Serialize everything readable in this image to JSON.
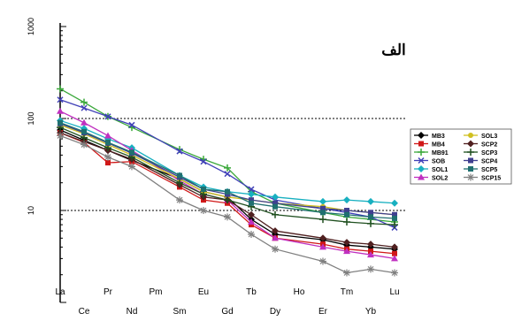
{
  "chart_data": {
    "type": "line",
    "title": "الف",
    "xlabel": "",
    "ylabel": "",
    "y_scale": "log",
    "ylim": [
      1,
      1000
    ],
    "y_ticks": [
      "1000",
      "100",
      "10"
    ],
    "grid": "dotted lines at 10 and 100",
    "legend_placement": "right",
    "categories": [
      "La",
      "Ce",
      "Pr",
      "Nd",
      "Pm",
      "Sm",
      "Eu",
      "Gd",
      "Tb",
      "Dy",
      "Ho",
      "Er",
      "Tm",
      "Yb",
      "Lu"
    ],
    "x_ticks_top": [
      "La",
      "Pr",
      "Pm",
      "Eu",
      "Tb",
      "Ho",
      "Tm",
      "Lu"
    ],
    "x_ticks_bottom": [
      "Ce",
      "Nd",
      "Sm",
      "Gd",
      "Dy",
      "Er",
      "Yb"
    ],
    "series": [
      {
        "name": "MB3",
        "color": "#000000",
        "marker": "diamond",
        "values": [
          75,
          58,
          45,
          35,
          null,
          22,
          16,
          14,
          8,
          5.5,
          null,
          4.8,
          4.2,
          4.0,
          3.8
        ]
      },
      {
        "name": "MB4",
        "color": "#d01818",
        "marker": "square",
        "values": [
          70,
          55,
          33,
          34,
          null,
          18,
          13,
          12,
          7,
          5.0,
          null,
          4.3,
          3.8,
          3.6,
          3.4
        ]
      },
      {
        "name": "MB91",
        "color": "#3aa83a",
        "marker": "plus",
        "values": [
          210,
          150,
          105,
          80,
          null,
          46,
          36,
          29,
          16,
          12,
          null,
          9.5,
          8.5,
          8.0,
          7.5
        ]
      },
      {
        "name": "SOB",
        "color": "#4040b8",
        "marker": "x",
        "values": [
          160,
          130,
          105,
          85,
          null,
          44,
          34,
          25,
          17,
          13,
          null,
          10.5,
          9.5,
          8.5,
          6.5
        ]
      },
      {
        "name": "SOL1",
        "color": "#18b0c0",
        "marker": "diamond",
        "values": [
          95,
          78,
          60,
          48,
          null,
          24,
          18,
          16,
          15,
          14,
          null,
          12.5,
          13,
          12.5,
          12
        ]
      },
      {
        "name": "SOL2",
        "color": "#c030c0",
        "marker": "triangle",
        "values": [
          120,
          90,
          65,
          45,
          null,
          21,
          15,
          13,
          7.5,
          5.0,
          null,
          4.0,
          3.6,
          3.3,
          3.0
        ]
      },
      {
        "name": "SOL3",
        "color": "#d0c020",
        "marker": "circle",
        "values": [
          85,
          68,
          52,
          40,
          null,
          22,
          16,
          14,
          13,
          12,
          null,
          11,
          10,
          9.5,
          9.0
        ]
      },
      {
        "name": "SCP2",
        "color": "#502020",
        "marker": "diamond",
        "values": [
          70,
          56,
          45,
          36,
          null,
          19,
          14,
          13,
          9,
          6.0,
          null,
          5.0,
          4.5,
          4.3,
          4.0
        ]
      },
      {
        "name": "SCP3",
        "color": "#205020",
        "marker": "plus",
        "values": [
          80,
          62,
          48,
          38,
          null,
          20,
          15,
          13,
          11,
          9.0,
          null,
          8.0,
          7.5,
          7.2,
          7.0
        ]
      },
      {
        "name": "SCP4",
        "color": "#404090",
        "marker": "square",
        "values": [
          88,
          70,
          54,
          42,
          null,
          23,
          17,
          15,
          13,
          12,
          null,
          10.5,
          10,
          9.5,
          9.0
        ]
      },
      {
        "name": "SCP5",
        "color": "#207070",
        "marker": "square",
        "values": [
          90,
          72,
          55,
          43,
          null,
          24,
          17,
          16,
          12,
          11,
          null,
          9.5,
          9.0,
          8.5,
          8.2
        ]
      },
      {
        "name": "SCP15",
        "color": "#808080",
        "marker": "star",
        "values": [
          65,
          52,
          38,
          30,
          null,
          13,
          10,
          8.5,
          5.5,
          3.8,
          null,
          2.8,
          2.1,
          2.3,
          2.1
        ]
      }
    ]
  }
}
